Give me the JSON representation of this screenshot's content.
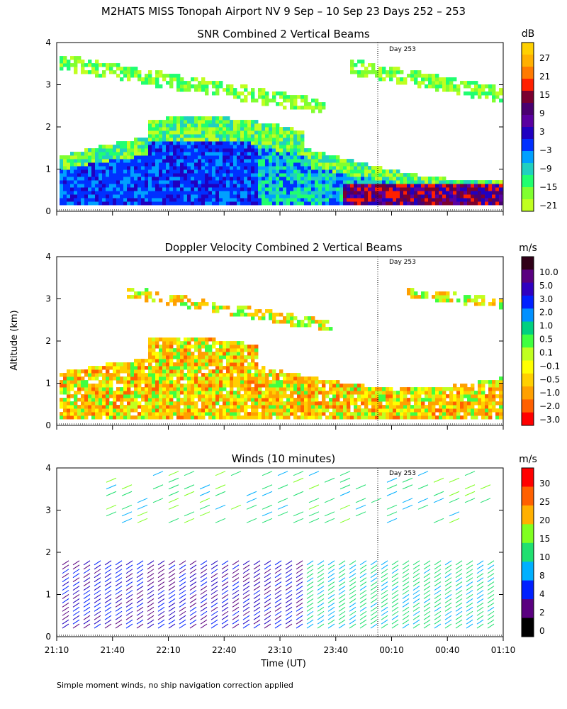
{
  "main_title": "M2HATS MISS Tonopah Airport NV   9 Sep – 10 Sep 23 Days 252 – 253",
  "y_axis_label": "Altitude (km)",
  "x_axis_label": "Time (UT)",
  "footnote": "Simple moment winds, no ship navigation correction applied",
  "day_marker_label": "Day 253",
  "chart_data": [
    {
      "type": "heatmap",
      "title": "SNR Combined 2 Vertical Beams",
      "ylim": [
        0,
        4
      ],
      "yticks": [
        "0",
        "1",
        "2",
        "3",
        "4"
      ],
      "colorbar_unit": "dB",
      "colorbar_labels": [
        "27",
        "21",
        "15",
        "9",
        "3",
        "−3",
        "−9",
        "−15",
        "−21"
      ],
      "colorbar_colors": [
        "#ffd000",
        "#ffb000",
        "#ff7a00",
        "#ff2000",
        "#7a0030",
        "#4a0070",
        "#5a00a0",
        "#2000c0",
        "#0030ff",
        "#00a0ff",
        "#20d0c0",
        "#20ff70",
        "#80ff30",
        "#c0ff20"
      ],
      "day_marker_time": "00:03"
    },
    {
      "type": "heatmap",
      "title": "Doppler Velocity Combined 2 Vertical Beams",
      "ylim": [
        0,
        4
      ],
      "yticks": [
        "0",
        "1",
        "2",
        "3",
        "4"
      ],
      "colorbar_unit": "m/s",
      "colorbar_labels": [
        "10.0",
        "5.0",
        "3.0",
        "2.0",
        "1.0",
        "0.5",
        "0.1",
        "−0.1",
        "−0.5",
        "−1.0",
        "−2.0",
        "−3.0"
      ],
      "colorbar_colors": [
        "#300018",
        "#5a0080",
        "#3000c0",
        "#0020ff",
        "#0090ff",
        "#00d080",
        "#40ff40",
        "#c0ff20",
        "#ffff00",
        "#ffd000",
        "#ffa000",
        "#ff6000",
        "#ff0000"
      ],
      "day_marker_time": "00:03"
    },
    {
      "type": "scatter",
      "title": "Winds (10 minutes)",
      "ylim": [
        0,
        4
      ],
      "yticks": [
        "0",
        "1",
        "2",
        "3",
        "4"
      ],
      "colorbar_unit": "m/s",
      "colorbar_labels": [
        "30",
        "25",
        "20",
        "15",
        "10",
        "8",
        "4",
        "2",
        "0"
      ],
      "colorbar_colors": [
        "#ff0000",
        "#ff6000",
        "#ffb000",
        "#80ff20",
        "#20e070",
        "#00b0ff",
        "#0020ff",
        "#5a0080",
        "#000000"
      ],
      "day_marker_time": "00:03"
    }
  ],
  "x_ticks": [
    "21:10",
    "21:40",
    "22:10",
    "22:40",
    "23:10",
    "23:40",
    "00:10",
    "00:40",
    "01:10"
  ]
}
